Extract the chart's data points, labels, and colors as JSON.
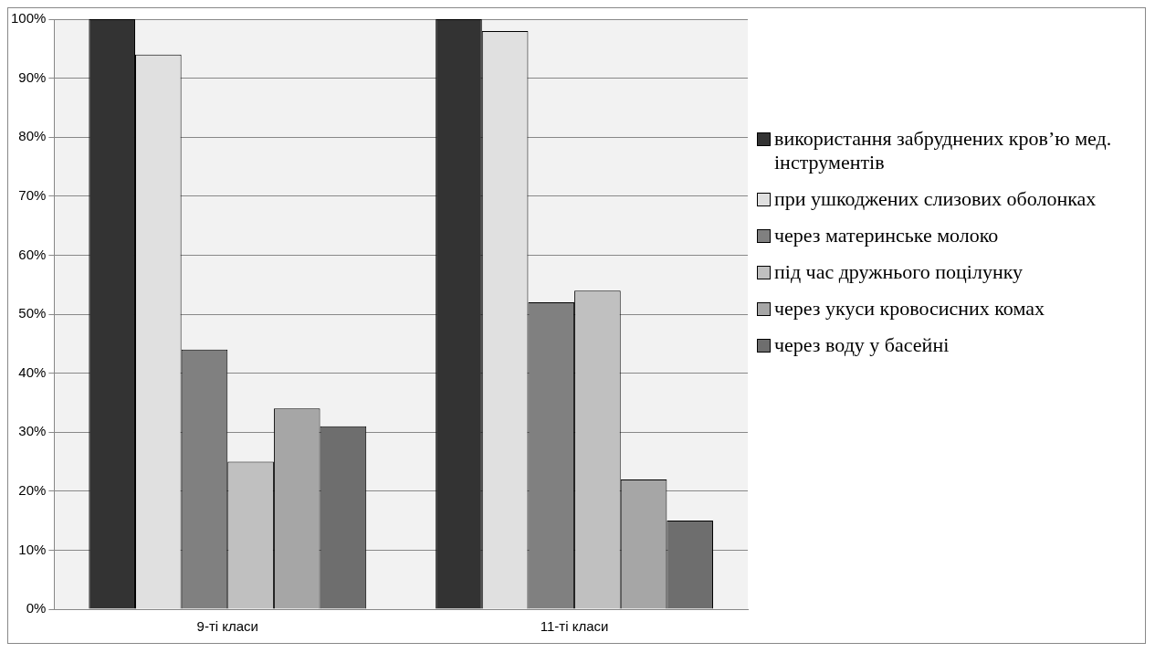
{
  "chart_data": {
    "type": "bar",
    "categories": [
      "9-ті класи",
      "11-ті класи"
    ],
    "series": [
      {
        "name": "використання забруднених кров’ю мед. інструментів",
        "color": "#333333",
        "values": [
          100,
          100
        ]
      },
      {
        "name": "при ушкоджених слизових оболонках",
        "color": "#e0e0e0",
        "values": [
          94,
          98
        ]
      },
      {
        "name": "через материнське молоко",
        "color": "#808080",
        "values": [
          44,
          52
        ]
      },
      {
        "name": "під час дружнього поцілунку",
        "color": "#c0c0c0",
        "values": [
          25,
          54
        ]
      },
      {
        "name": "через укуси кровосисних комах",
        "color": "#a6a6a6",
        "values": [
          34,
          22
        ]
      },
      {
        "name": "через воду у басейні",
        "color": "#6e6e6e",
        "values": [
          31,
          15
        ]
      }
    ],
    "ylim": [
      0,
      100
    ],
    "yticks": [
      {
        "value": 0,
        "label": "0%"
      },
      {
        "value": 10,
        "label": "10%"
      },
      {
        "value": 20,
        "label": "20%"
      },
      {
        "value": 30,
        "label": "30%"
      },
      {
        "value": 40,
        "label": "40%"
      },
      {
        "value": 50,
        "label": "50%"
      },
      {
        "value": 60,
        "label": "60%"
      },
      {
        "value": 70,
        "label": "70%"
      },
      {
        "value": 80,
        "label": "80%"
      },
      {
        "value": 90,
        "label": "90%"
      },
      {
        "value": 100,
        "label": "100%"
      }
    ],
    "grid": "y",
    "legend": "right"
  }
}
